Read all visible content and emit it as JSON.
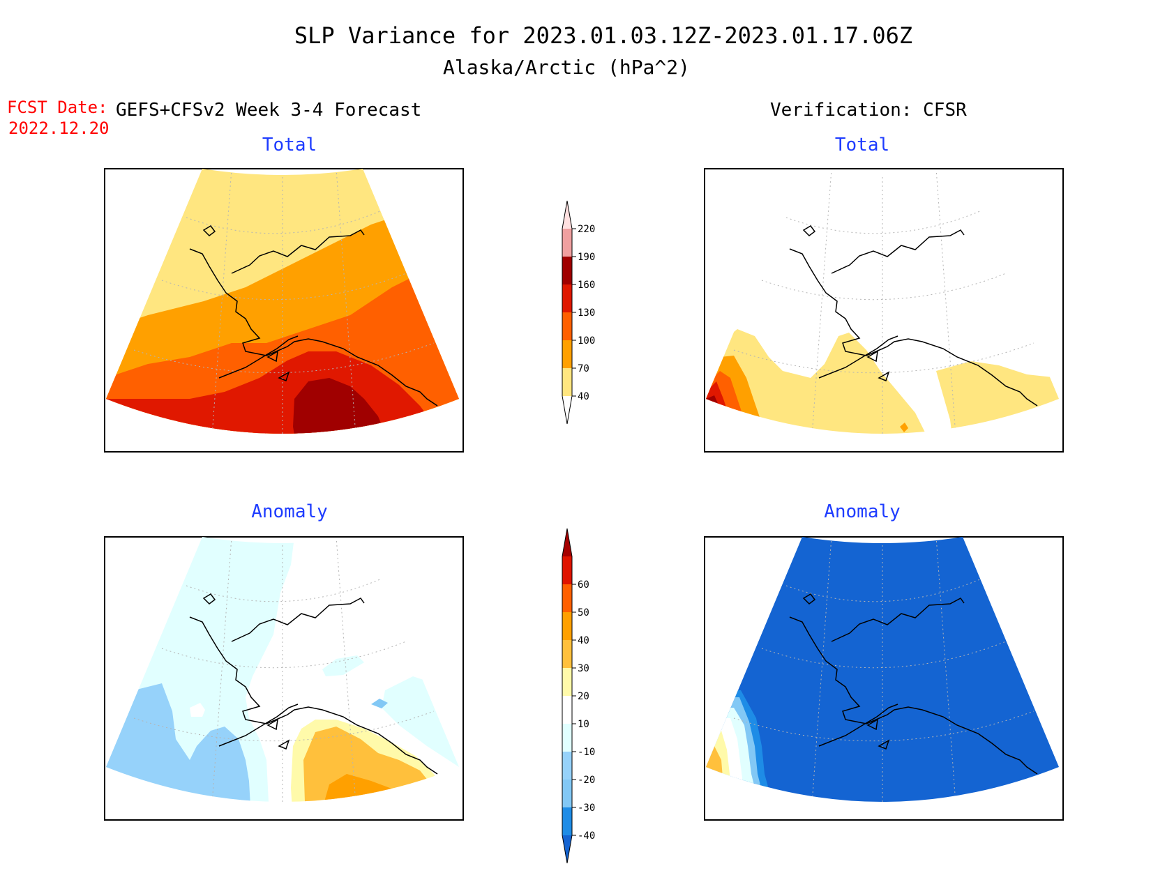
{
  "title": {
    "line1": "SLP Variance for 2023.01.03.12Z-2023.01.17.06Z",
    "line2": "Alaska/Arctic (hPa^2)"
  },
  "fcst": {
    "label": "FCST Date:",
    "date": "2022.12.20"
  },
  "forecast_heading": "GEFS+CFSv2 Week 3-4 Forecast",
  "verification_heading": "Verification: CFSR",
  "panels": {
    "forecast_total": {
      "title": "Total"
    },
    "verification_total": {
      "title": "Total"
    },
    "forecast_anomaly": {
      "title": "Anomaly"
    },
    "verification_anomaly": {
      "title": "Anomaly"
    }
  },
  "total_scale": {
    "levels": [
      "40",
      "70",
      "100",
      "130",
      "160",
      "190",
      "220"
    ],
    "colors": [
      "#ffffff",
      "#ffe680",
      "#ffa000",
      "#ff6000",
      "#e01800",
      "#a00000",
      "#f0a0a0",
      "#ffe0e0"
    ]
  },
  "anomaly_scale": {
    "levels": [
      "-40",
      "-30",
      "-20",
      "-10",
      "10",
      "20",
      "30",
      "40",
      "50",
      "60"
    ],
    "colors": [
      "#1464d2",
      "#1e8ce6",
      "#82c8f5",
      "#96d2fa",
      "#e1ffff",
      "#ffffff",
      "#fffaaa",
      "#ffc03c",
      "#ffa000",
      "#ff6000",
      "#e01400",
      "#a50000"
    ]
  },
  "colors": {
    "title_text": "#000000",
    "fcst_text": "#ff0000",
    "panel_title": "#1e3cff",
    "land_outline": "#000000",
    "graticule": "#b4b4b4"
  }
}
